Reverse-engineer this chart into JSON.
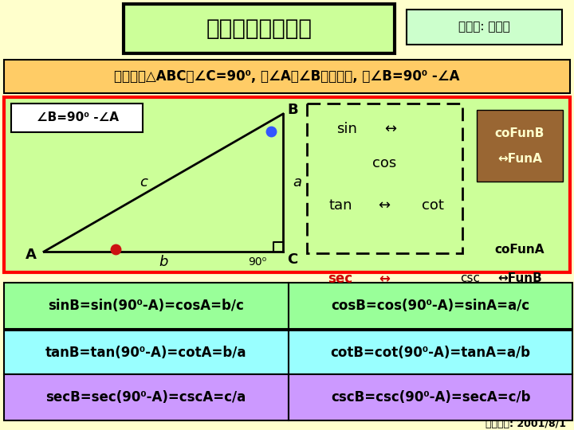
{
  "bg_color": "#ffffcc",
  "title": "餘角的三角函數値",
  "title_box_color": "#ccff99",
  "author_box_color": "#ccffcc",
  "author_text": "製作人: 李躍進",
  "subtitle": "設三角形△ABC中∠C=90⁰, 則∠A與∠B互為餘角, 即∠B=90⁰ -∠A",
  "subtitle_bg": "#ffcc66",
  "triangle_area_bg": "#ccff99",
  "triangle_area_border": "#ff0000",
  "label_text": "∠B=90⁰ -∠A",
  "cofun_box_bg": "#996633",
  "cofun_box_text_color": "#ffffcc",
  "row1_bg": "#99ff99",
  "row2_bg": "#99ffff",
  "row3_bg": "#cc99ff",
  "row1_left": "sinB=sin(90⁰-A)=cosA=b/c",
  "row1_right": "cosB=cos(90⁰-A)=sinA=a/c",
  "row2_left": "tanB=tan(90⁰-A)=cotA=b/a",
  "row2_right": "cotB=cot(90⁰-A)=tanA=a/b",
  "row3_left": "secB=sec(90⁰-A)=cscA=c/a",
  "row3_right": "cscB=csc(90⁰-A)=secA=c/b",
  "date_text": "製作日期: 2001/8/1"
}
